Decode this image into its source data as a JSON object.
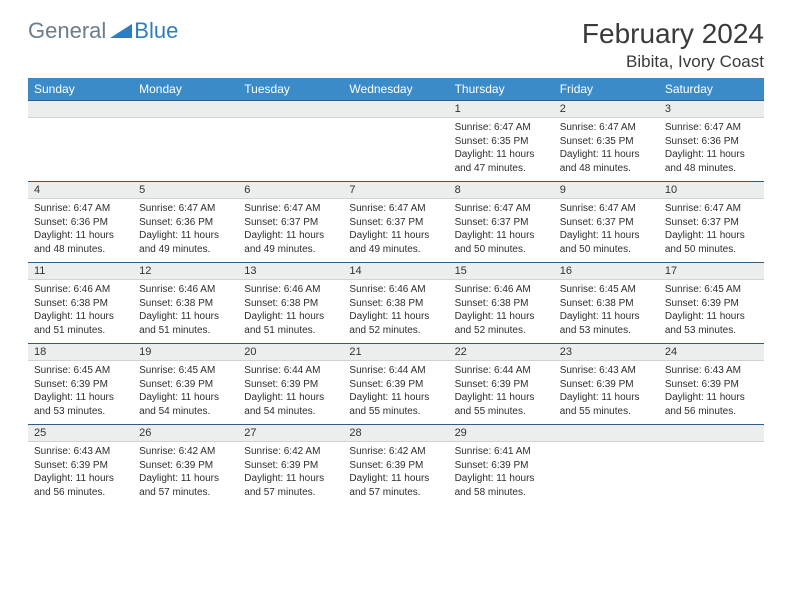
{
  "logo": {
    "general": "General",
    "blue": "Blue"
  },
  "title": "February 2024",
  "location": "Bibita, Ivory Coast",
  "colors": {
    "header_bg": "#3b8bc9",
    "header_text": "#ffffff",
    "daterow_bg": "#eceded",
    "daterow_top_border": "#2d5d86",
    "logo_accent": "#2d7ec1",
    "logo_gray": "#6b7c8a"
  },
  "weekdays": [
    "Sunday",
    "Monday",
    "Tuesday",
    "Wednesday",
    "Thursday",
    "Friday",
    "Saturday"
  ],
  "weeks": [
    {
      "dates": [
        "",
        "",
        "",
        "",
        "1",
        "2",
        "3"
      ],
      "details": [
        null,
        null,
        null,
        null,
        {
          "sunrise": "Sunrise: 6:47 AM",
          "sunset": "Sunset: 6:35 PM",
          "day1": "Daylight: 11 hours",
          "day2": "and 47 minutes."
        },
        {
          "sunrise": "Sunrise: 6:47 AM",
          "sunset": "Sunset: 6:35 PM",
          "day1": "Daylight: 11 hours",
          "day2": "and 48 minutes."
        },
        {
          "sunrise": "Sunrise: 6:47 AM",
          "sunset": "Sunset: 6:36 PM",
          "day1": "Daylight: 11 hours",
          "day2": "and 48 minutes."
        }
      ]
    },
    {
      "dates": [
        "4",
        "5",
        "6",
        "7",
        "8",
        "9",
        "10"
      ],
      "details": [
        {
          "sunrise": "Sunrise: 6:47 AM",
          "sunset": "Sunset: 6:36 PM",
          "day1": "Daylight: 11 hours",
          "day2": "and 48 minutes."
        },
        {
          "sunrise": "Sunrise: 6:47 AM",
          "sunset": "Sunset: 6:36 PM",
          "day1": "Daylight: 11 hours",
          "day2": "and 49 minutes."
        },
        {
          "sunrise": "Sunrise: 6:47 AM",
          "sunset": "Sunset: 6:37 PM",
          "day1": "Daylight: 11 hours",
          "day2": "and 49 minutes."
        },
        {
          "sunrise": "Sunrise: 6:47 AM",
          "sunset": "Sunset: 6:37 PM",
          "day1": "Daylight: 11 hours",
          "day2": "and 49 minutes."
        },
        {
          "sunrise": "Sunrise: 6:47 AM",
          "sunset": "Sunset: 6:37 PM",
          "day1": "Daylight: 11 hours",
          "day2": "and 50 minutes."
        },
        {
          "sunrise": "Sunrise: 6:47 AM",
          "sunset": "Sunset: 6:37 PM",
          "day1": "Daylight: 11 hours",
          "day2": "and 50 minutes."
        },
        {
          "sunrise": "Sunrise: 6:47 AM",
          "sunset": "Sunset: 6:37 PM",
          "day1": "Daylight: 11 hours",
          "day2": "and 50 minutes."
        }
      ]
    },
    {
      "dates": [
        "11",
        "12",
        "13",
        "14",
        "15",
        "16",
        "17"
      ],
      "details": [
        {
          "sunrise": "Sunrise: 6:46 AM",
          "sunset": "Sunset: 6:38 PM",
          "day1": "Daylight: 11 hours",
          "day2": "and 51 minutes."
        },
        {
          "sunrise": "Sunrise: 6:46 AM",
          "sunset": "Sunset: 6:38 PM",
          "day1": "Daylight: 11 hours",
          "day2": "and 51 minutes."
        },
        {
          "sunrise": "Sunrise: 6:46 AM",
          "sunset": "Sunset: 6:38 PM",
          "day1": "Daylight: 11 hours",
          "day2": "and 51 minutes."
        },
        {
          "sunrise": "Sunrise: 6:46 AM",
          "sunset": "Sunset: 6:38 PM",
          "day1": "Daylight: 11 hours",
          "day2": "and 52 minutes."
        },
        {
          "sunrise": "Sunrise: 6:46 AM",
          "sunset": "Sunset: 6:38 PM",
          "day1": "Daylight: 11 hours",
          "day2": "and 52 minutes."
        },
        {
          "sunrise": "Sunrise: 6:45 AM",
          "sunset": "Sunset: 6:38 PM",
          "day1": "Daylight: 11 hours",
          "day2": "and 53 minutes."
        },
        {
          "sunrise": "Sunrise: 6:45 AM",
          "sunset": "Sunset: 6:39 PM",
          "day1": "Daylight: 11 hours",
          "day2": "and 53 minutes."
        }
      ]
    },
    {
      "dates": [
        "18",
        "19",
        "20",
        "21",
        "22",
        "23",
        "24"
      ],
      "details": [
        {
          "sunrise": "Sunrise: 6:45 AM",
          "sunset": "Sunset: 6:39 PM",
          "day1": "Daylight: 11 hours",
          "day2": "and 53 minutes."
        },
        {
          "sunrise": "Sunrise: 6:45 AM",
          "sunset": "Sunset: 6:39 PM",
          "day1": "Daylight: 11 hours",
          "day2": "and 54 minutes."
        },
        {
          "sunrise": "Sunrise: 6:44 AM",
          "sunset": "Sunset: 6:39 PM",
          "day1": "Daylight: 11 hours",
          "day2": "and 54 minutes."
        },
        {
          "sunrise": "Sunrise: 6:44 AM",
          "sunset": "Sunset: 6:39 PM",
          "day1": "Daylight: 11 hours",
          "day2": "and 55 minutes."
        },
        {
          "sunrise": "Sunrise: 6:44 AM",
          "sunset": "Sunset: 6:39 PM",
          "day1": "Daylight: 11 hours",
          "day2": "and 55 minutes."
        },
        {
          "sunrise": "Sunrise: 6:43 AM",
          "sunset": "Sunset: 6:39 PM",
          "day1": "Daylight: 11 hours",
          "day2": "and 55 minutes."
        },
        {
          "sunrise": "Sunrise: 6:43 AM",
          "sunset": "Sunset: 6:39 PM",
          "day1": "Daylight: 11 hours",
          "day2": "and 56 minutes."
        }
      ]
    },
    {
      "dates": [
        "25",
        "26",
        "27",
        "28",
        "29",
        "",
        ""
      ],
      "details": [
        {
          "sunrise": "Sunrise: 6:43 AM",
          "sunset": "Sunset: 6:39 PM",
          "day1": "Daylight: 11 hours",
          "day2": "and 56 minutes."
        },
        {
          "sunrise": "Sunrise: 6:42 AM",
          "sunset": "Sunset: 6:39 PM",
          "day1": "Daylight: 11 hours",
          "day2": "and 57 minutes."
        },
        {
          "sunrise": "Sunrise: 6:42 AM",
          "sunset": "Sunset: 6:39 PM",
          "day1": "Daylight: 11 hours",
          "day2": "and 57 minutes."
        },
        {
          "sunrise": "Sunrise: 6:42 AM",
          "sunset": "Sunset: 6:39 PM",
          "day1": "Daylight: 11 hours",
          "day2": "and 57 minutes."
        },
        {
          "sunrise": "Sunrise: 6:41 AM",
          "sunset": "Sunset: 6:39 PM",
          "day1": "Daylight: 11 hours",
          "day2": "and 58 minutes."
        },
        null,
        null
      ]
    }
  ]
}
